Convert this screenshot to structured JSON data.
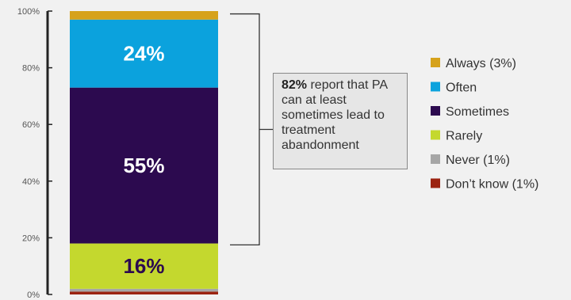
{
  "chart_data": {
    "type": "bar",
    "stacked": true,
    "categories": [
      ""
    ],
    "ylim": [
      0,
      100
    ],
    "yticks": [
      "0%",
      "20%",
      "40%",
      "60%",
      "80%",
      "100%"
    ],
    "grid": false,
    "legend_position": "right",
    "series": [
      {
        "name": "Don’t know (1%)",
        "value": 1,
        "color": "#9b2311",
        "label": ""
      },
      {
        "name": "Never (1%)",
        "value": 1,
        "color": "#a6a6a6",
        "label": ""
      },
      {
        "name": "Rarely",
        "value": 16,
        "color": "#c4d82e",
        "label": "16%",
        "label_color": "#2c0a4f"
      },
      {
        "name": "Sometimes",
        "value": 55,
        "color": "#2c0a4f",
        "label": "55%",
        "label_color": "#ffffff"
      },
      {
        "name": "Often",
        "value": 24,
        "color": "#0ba2dd",
        "label": "24%",
        "label_color": "#ffffff"
      },
      {
        "name": "Always (3%)",
        "value": 3,
        "color": "#d6a21b",
        "label": ""
      }
    ],
    "legend_order": [
      "Always (3%)",
      "Often",
      "Sometimes",
      "Rarely",
      "Never (1%)",
      "Don’t know (1%)"
    ],
    "annotation": {
      "bold": "82%",
      "text": " report that PA can at least sometimes lead to treatment abandonment",
      "bracket_from": 17.5,
      "bracket_to": 99
    }
  }
}
